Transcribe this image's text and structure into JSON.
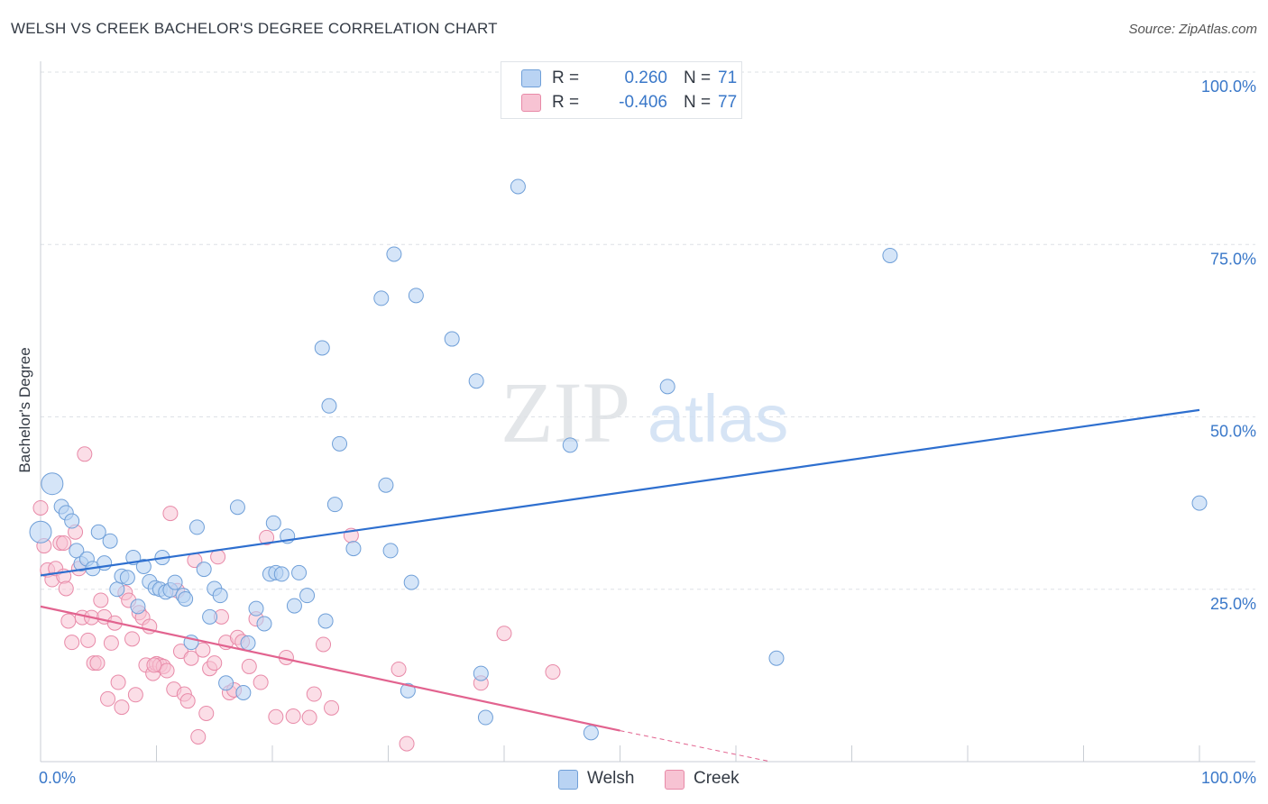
{
  "title": "WELSH VS CREEK BACHELOR'S DEGREE CORRELATION CHART",
  "source": "Source: ZipAtlas.com",
  "watermark": {
    "zip": "ZIP",
    "atlas": "atlas"
  },
  "colors": {
    "welsh_fill": "#b9d3f3",
    "welsh_stroke": "#6f9fd8",
    "welsh_line": "#2e6fcf",
    "creek_fill": "#f7c3d3",
    "creek_stroke": "#e88aa8",
    "creek_line": "#e2638f",
    "axis_text": "#3a78c9",
    "grid": "#dde1e6"
  },
  "legend": {
    "rows": [
      {
        "r_label": "R =",
        "r_value": "0.260",
        "n_label": "N =",
        "n_value": "71"
      },
      {
        "r_label": "R =",
        "r_value": "-0.406",
        "n_label": "N =",
        "n_value": "77"
      }
    ]
  },
  "bottom_legend": {
    "welsh": "Welsh",
    "creek": "Creek"
  },
  "chart_data": {
    "type": "scatter",
    "title": "WELSH VS CREEK BACHELOR'S DEGREE CORRELATION CHART",
    "ylabel": "Bachelor's Degree",
    "xlabel": "",
    "x_tick_labels": [
      "0.0%",
      "100.0%"
    ],
    "y_tick_labels": [
      "100.0%",
      "75.0%",
      "50.0%",
      "25.0%"
    ],
    "xlim": [
      0,
      100
    ],
    "ylim": [
      0,
      100
    ],
    "grid": true,
    "legend_position": "top-center",
    "series": [
      {
        "name": "Welsh",
        "trend": {
          "x": [
            0,
            100
          ],
          "y": [
            27,
            51
          ]
        },
        "points": [
          [
            1.0,
            40.3
          ],
          [
            0.0,
            33.3
          ],
          [
            1.8,
            37.0
          ],
          [
            2.2,
            36.1
          ],
          [
            2.7,
            34.9
          ],
          [
            3.1,
            30.6
          ],
          [
            3.5,
            28.7
          ],
          [
            4.0,
            29.4
          ],
          [
            4.5,
            28.0
          ],
          [
            5.0,
            33.3
          ],
          [
            5.5,
            28.8
          ],
          [
            6.0,
            32.0
          ],
          [
            6.6,
            25.0
          ],
          [
            7.0,
            26.9
          ],
          [
            7.5,
            26.7
          ],
          [
            8.0,
            29.6
          ],
          [
            8.4,
            22.5
          ],
          [
            8.9,
            28.3
          ],
          [
            9.4,
            26.1
          ],
          [
            9.9,
            25.2
          ],
          [
            10.3,
            25.0
          ],
          [
            10.5,
            29.6
          ],
          [
            10.8,
            24.6
          ],
          [
            11.2,
            24.9
          ],
          [
            11.6,
            26.0
          ],
          [
            12.3,
            24.1
          ],
          [
            12.5,
            23.6
          ],
          [
            13.0,
            17.3
          ],
          [
            13.5,
            34.0
          ],
          [
            14.1,
            27.9
          ],
          [
            14.6,
            21.0
          ],
          [
            15.0,
            25.1
          ],
          [
            15.5,
            24.1
          ],
          [
            16.0,
            11.4
          ],
          [
            17.0,
            36.9
          ],
          [
            17.5,
            10.0
          ],
          [
            17.9,
            17.2
          ],
          [
            18.6,
            22.2
          ],
          [
            19.3,
            20.0
          ],
          [
            19.8,
            27.2
          ],
          [
            20.1,
            34.6
          ],
          [
            20.3,
            27.4
          ],
          [
            20.8,
            27.2
          ],
          [
            21.3,
            32.7
          ],
          [
            21.9,
            22.6
          ],
          [
            22.3,
            27.4
          ],
          [
            23.0,
            24.1
          ],
          [
            24.3,
            60.0
          ],
          [
            24.6,
            20.4
          ],
          [
            24.9,
            51.6
          ],
          [
            25.4,
            37.3
          ],
          [
            25.8,
            46.1
          ],
          [
            27.0,
            30.9
          ],
          [
            29.4,
            67.2
          ],
          [
            29.8,
            40.1
          ],
          [
            30.2,
            30.6
          ],
          [
            30.5,
            73.6
          ],
          [
            31.7,
            10.3
          ],
          [
            32.0,
            26.0
          ],
          [
            32.4,
            67.6
          ],
          [
            35.5,
            61.3
          ],
          [
            37.6,
            55.2
          ],
          [
            38.0,
            12.8
          ],
          [
            38.4,
            6.4
          ],
          [
            41.2,
            83.4
          ],
          [
            45.7,
            45.9
          ],
          [
            47.5,
            4.2
          ],
          [
            54.1,
            54.4
          ],
          [
            63.5,
            15.0
          ],
          [
            73.3,
            73.4
          ],
          [
            100.0,
            37.5
          ]
        ]
      },
      {
        "name": "Creek",
        "trend": {
          "x": [
            0,
            50
          ],
          "y": [
            22.5,
            4.5
          ]
        },
        "trend_extension": {
          "x": [
            50,
            63
          ],
          "y": [
            4.5,
            0
          ]
        },
        "points": [
          [
            0.0,
            36.8
          ],
          [
            0.3,
            31.3
          ],
          [
            0.6,
            27.8
          ],
          [
            1.0,
            26.4
          ],
          [
            1.3,
            28.0
          ],
          [
            1.7,
            31.7
          ],
          [
            2.0,
            26.9
          ],
          [
            2.2,
            25.1
          ],
          [
            2.4,
            20.4
          ],
          [
            2.7,
            17.3
          ],
          [
            3.0,
            33.3
          ],
          [
            3.3,
            28.0
          ],
          [
            3.6,
            20.9
          ],
          [
            3.8,
            44.6
          ],
          [
            4.1,
            17.6
          ],
          [
            4.4,
            20.9
          ],
          [
            4.6,
            14.3
          ],
          [
            4.9,
            14.3
          ],
          [
            5.2,
            23.4
          ],
          [
            5.5,
            21.0
          ],
          [
            5.8,
            9.1
          ],
          [
            6.1,
            17.2
          ],
          [
            6.4,
            20.1
          ],
          [
            6.7,
            11.5
          ],
          [
            7.0,
            7.9
          ],
          [
            7.3,
            24.5
          ],
          [
            7.6,
            23.4
          ],
          [
            7.9,
            17.8
          ],
          [
            8.2,
            9.7
          ],
          [
            8.5,
            21.6
          ],
          [
            8.8,
            20.9
          ],
          [
            9.1,
            14.0
          ],
          [
            9.4,
            19.6
          ],
          [
            9.7,
            12.8
          ],
          [
            10.0,
            14.2
          ],
          [
            10.3,
            14.0
          ],
          [
            10.6,
            13.8
          ],
          [
            10.9,
            13.2
          ],
          [
            11.2,
            36.0
          ],
          [
            11.5,
            10.5
          ],
          [
            11.8,
            24.8
          ],
          [
            12.1,
            16.0
          ],
          [
            12.4,
            9.8
          ],
          [
            12.7,
            8.8
          ],
          [
            13.0,
            15.0
          ],
          [
            13.3,
            29.2
          ],
          [
            13.6,
            3.6
          ],
          [
            14.0,
            16.2
          ],
          [
            14.3,
            7.0
          ],
          [
            14.6,
            13.5
          ],
          [
            15.0,
            14.3
          ],
          [
            15.3,
            29.7
          ],
          [
            15.6,
            21.0
          ],
          [
            16.0,
            17.3
          ],
          [
            16.3,
            10.0
          ],
          [
            16.7,
            10.4
          ],
          [
            17.0,
            18.0
          ],
          [
            17.4,
            17.4
          ],
          [
            18.0,
            13.8
          ],
          [
            18.6,
            20.7
          ],
          [
            19.0,
            11.5
          ],
          [
            19.5,
            32.5
          ],
          [
            20.3,
            6.5
          ],
          [
            21.2,
            15.1
          ],
          [
            21.8,
            6.6
          ],
          [
            23.2,
            6.4
          ],
          [
            23.6,
            9.8
          ],
          [
            24.4,
            17.0
          ],
          [
            25.1,
            7.8
          ],
          [
            26.8,
            32.8
          ],
          [
            30.9,
            13.4
          ],
          [
            31.6,
            2.6
          ],
          [
            38.0,
            11.4
          ],
          [
            40.0,
            18.6
          ],
          [
            44.2,
            13.0
          ],
          [
            2.0,
            31.7
          ],
          [
            9.8,
            14.0
          ]
        ]
      }
    ]
  }
}
